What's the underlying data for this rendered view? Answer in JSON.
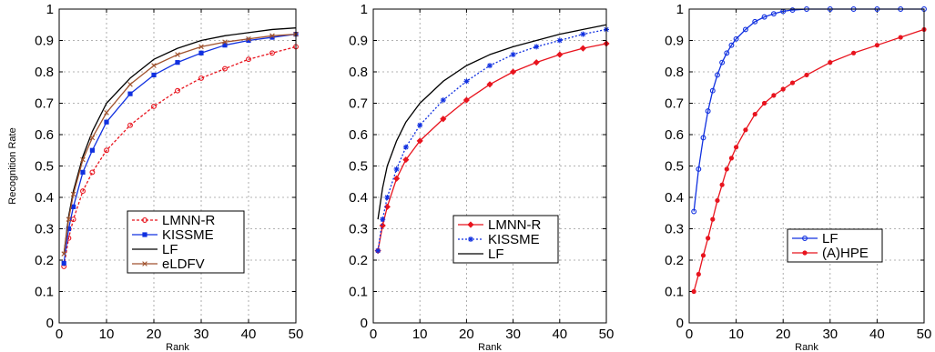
{
  "chart_data": [
    {
      "type": "line",
      "xlabel": "Rank",
      "ylabel": "Recognition Rate",
      "xlim": [
        0,
        50
      ],
      "ylim": [
        0,
        1
      ],
      "xticks": [
        "0",
        "10",
        "20",
        "30",
        "40",
        "50"
      ],
      "yticks": [
        "0",
        "0.1",
        "0.2",
        "0.3",
        "0.4",
        "0.5",
        "0.6",
        "0.7",
        "0.8",
        "0.9",
        "1"
      ],
      "grid": true,
      "legend_position": "lower-center",
      "series": [
        {
          "name": "LMNN-R",
          "color": "#e8141e",
          "dash": "3 2",
          "marker": "circle",
          "x": [
            1,
            2,
            3,
            5,
            7,
            10,
            15,
            20,
            25,
            30,
            35,
            40,
            45,
            50
          ],
          "y": [
            0.18,
            0.27,
            0.33,
            0.42,
            0.48,
            0.55,
            0.63,
            0.69,
            0.74,
            0.78,
            0.81,
            0.84,
            0.86,
            0.88
          ]
        },
        {
          "name": "KISSME",
          "color": "#1030e0",
          "dash": "",
          "marker": "square",
          "x": [
            1,
            2,
            3,
            5,
            7,
            10,
            15,
            20,
            25,
            30,
            35,
            40,
            45,
            50
          ],
          "y": [
            0.19,
            0.3,
            0.37,
            0.48,
            0.55,
            0.64,
            0.73,
            0.79,
            0.83,
            0.86,
            0.885,
            0.9,
            0.91,
            0.92
          ]
        },
        {
          "name": "LF",
          "color": "#000000",
          "dash": "",
          "marker": "none",
          "x": [
            1,
            2,
            3,
            5,
            7,
            10,
            15,
            20,
            25,
            30,
            35,
            40,
            45,
            50
          ],
          "y": [
            0.22,
            0.34,
            0.42,
            0.53,
            0.61,
            0.7,
            0.78,
            0.84,
            0.875,
            0.9,
            0.915,
            0.925,
            0.935,
            0.94
          ]
        },
        {
          "name": "eLDFV",
          "color": "#a0522d",
          "dash": "",
          "marker": "x",
          "x": [
            1,
            2,
            3,
            5,
            7,
            10,
            15,
            20,
            25,
            30,
            35,
            40,
            45,
            50
          ],
          "y": [
            0.22,
            0.33,
            0.41,
            0.52,
            0.59,
            0.67,
            0.76,
            0.82,
            0.855,
            0.88,
            0.895,
            0.905,
            0.915,
            0.92
          ]
        }
      ]
    },
    {
      "type": "line",
      "xlabel": "Rank",
      "ylabel": "",
      "xlim": [
        0,
        50
      ],
      "ylim": [
        0,
        1
      ],
      "xticks": [
        "0",
        "10",
        "20",
        "30",
        "40",
        "50"
      ],
      "yticks": [
        "0",
        "0.1",
        "0.2",
        "0.3",
        "0.4",
        "0.5",
        "0.6",
        "0.7",
        "0.8",
        "0.9",
        "1"
      ],
      "grid": true,
      "legend_position": "lower-center",
      "series": [
        {
          "name": "LMNN-R",
          "color": "#e8141e",
          "dash": "",
          "marker": "diamond",
          "x": [
            1,
            2,
            3,
            5,
            7,
            10,
            15,
            20,
            25,
            30,
            35,
            40,
            45,
            50
          ],
          "y": [
            0.23,
            0.31,
            0.37,
            0.46,
            0.52,
            0.58,
            0.65,
            0.71,
            0.76,
            0.8,
            0.83,
            0.855,
            0.875,
            0.89
          ]
        },
        {
          "name": "KISSME",
          "color": "#1030e0",
          "dash": "2 2",
          "marker": "star",
          "x": [
            1,
            2,
            3,
            5,
            7,
            10,
            15,
            20,
            25,
            30,
            35,
            40,
            45,
            50
          ],
          "y": [
            0.23,
            0.33,
            0.4,
            0.49,
            0.56,
            0.63,
            0.71,
            0.77,
            0.82,
            0.855,
            0.88,
            0.9,
            0.92,
            0.935
          ]
        },
        {
          "name": "LF",
          "color": "#000000",
          "dash": "",
          "marker": "none",
          "x": [
            1,
            2,
            3,
            5,
            7,
            10,
            15,
            20,
            25,
            30,
            35,
            40,
            45,
            50
          ],
          "y": [
            0.33,
            0.43,
            0.5,
            0.58,
            0.64,
            0.7,
            0.77,
            0.82,
            0.855,
            0.88,
            0.9,
            0.92,
            0.935,
            0.95
          ]
        }
      ]
    },
    {
      "type": "line",
      "xlabel": "Rank",
      "ylabel": "",
      "xlim": [
        0,
        50
      ],
      "ylim": [
        0,
        1
      ],
      "xticks": [
        "0",
        "10",
        "20",
        "30",
        "40",
        "50"
      ],
      "yticks": [
        "0",
        "0.1",
        "0.2",
        "0.3",
        "0.4",
        "0.5",
        "0.6",
        "0.7",
        "0.8",
        "0.9",
        "1"
      ],
      "grid": true,
      "legend_position": "lower-center",
      "series": [
        {
          "name": "LF",
          "color": "#1030e0",
          "dash": "",
          "marker": "circle",
          "x": [
            1,
            2,
            3,
            4,
            5,
            6,
            7,
            8,
            9,
            10,
            12,
            14,
            16,
            18,
            20,
            22,
            25,
            30,
            35,
            40,
            45,
            50
          ],
          "y": [
            0.355,
            0.49,
            0.59,
            0.675,
            0.74,
            0.79,
            0.83,
            0.86,
            0.885,
            0.905,
            0.935,
            0.96,
            0.975,
            0.985,
            0.993,
            0.997,
            1.0,
            1.0,
            1.0,
            1.0,
            1.0,
            1.0
          ]
        },
        {
          "name": "(A)HPE",
          "color": "#e8141e",
          "dash": "",
          "marker": "dot",
          "x": [
            1,
            2,
            3,
            4,
            5,
            6,
            7,
            8,
            9,
            10,
            12,
            14,
            16,
            18,
            20,
            22,
            25,
            30,
            35,
            40,
            45,
            50
          ],
          "y": [
            0.1,
            0.155,
            0.215,
            0.27,
            0.33,
            0.39,
            0.44,
            0.49,
            0.525,
            0.56,
            0.615,
            0.665,
            0.7,
            0.725,
            0.745,
            0.765,
            0.79,
            0.83,
            0.86,
            0.885,
            0.91,
            0.935
          ]
        }
      ]
    }
  ]
}
